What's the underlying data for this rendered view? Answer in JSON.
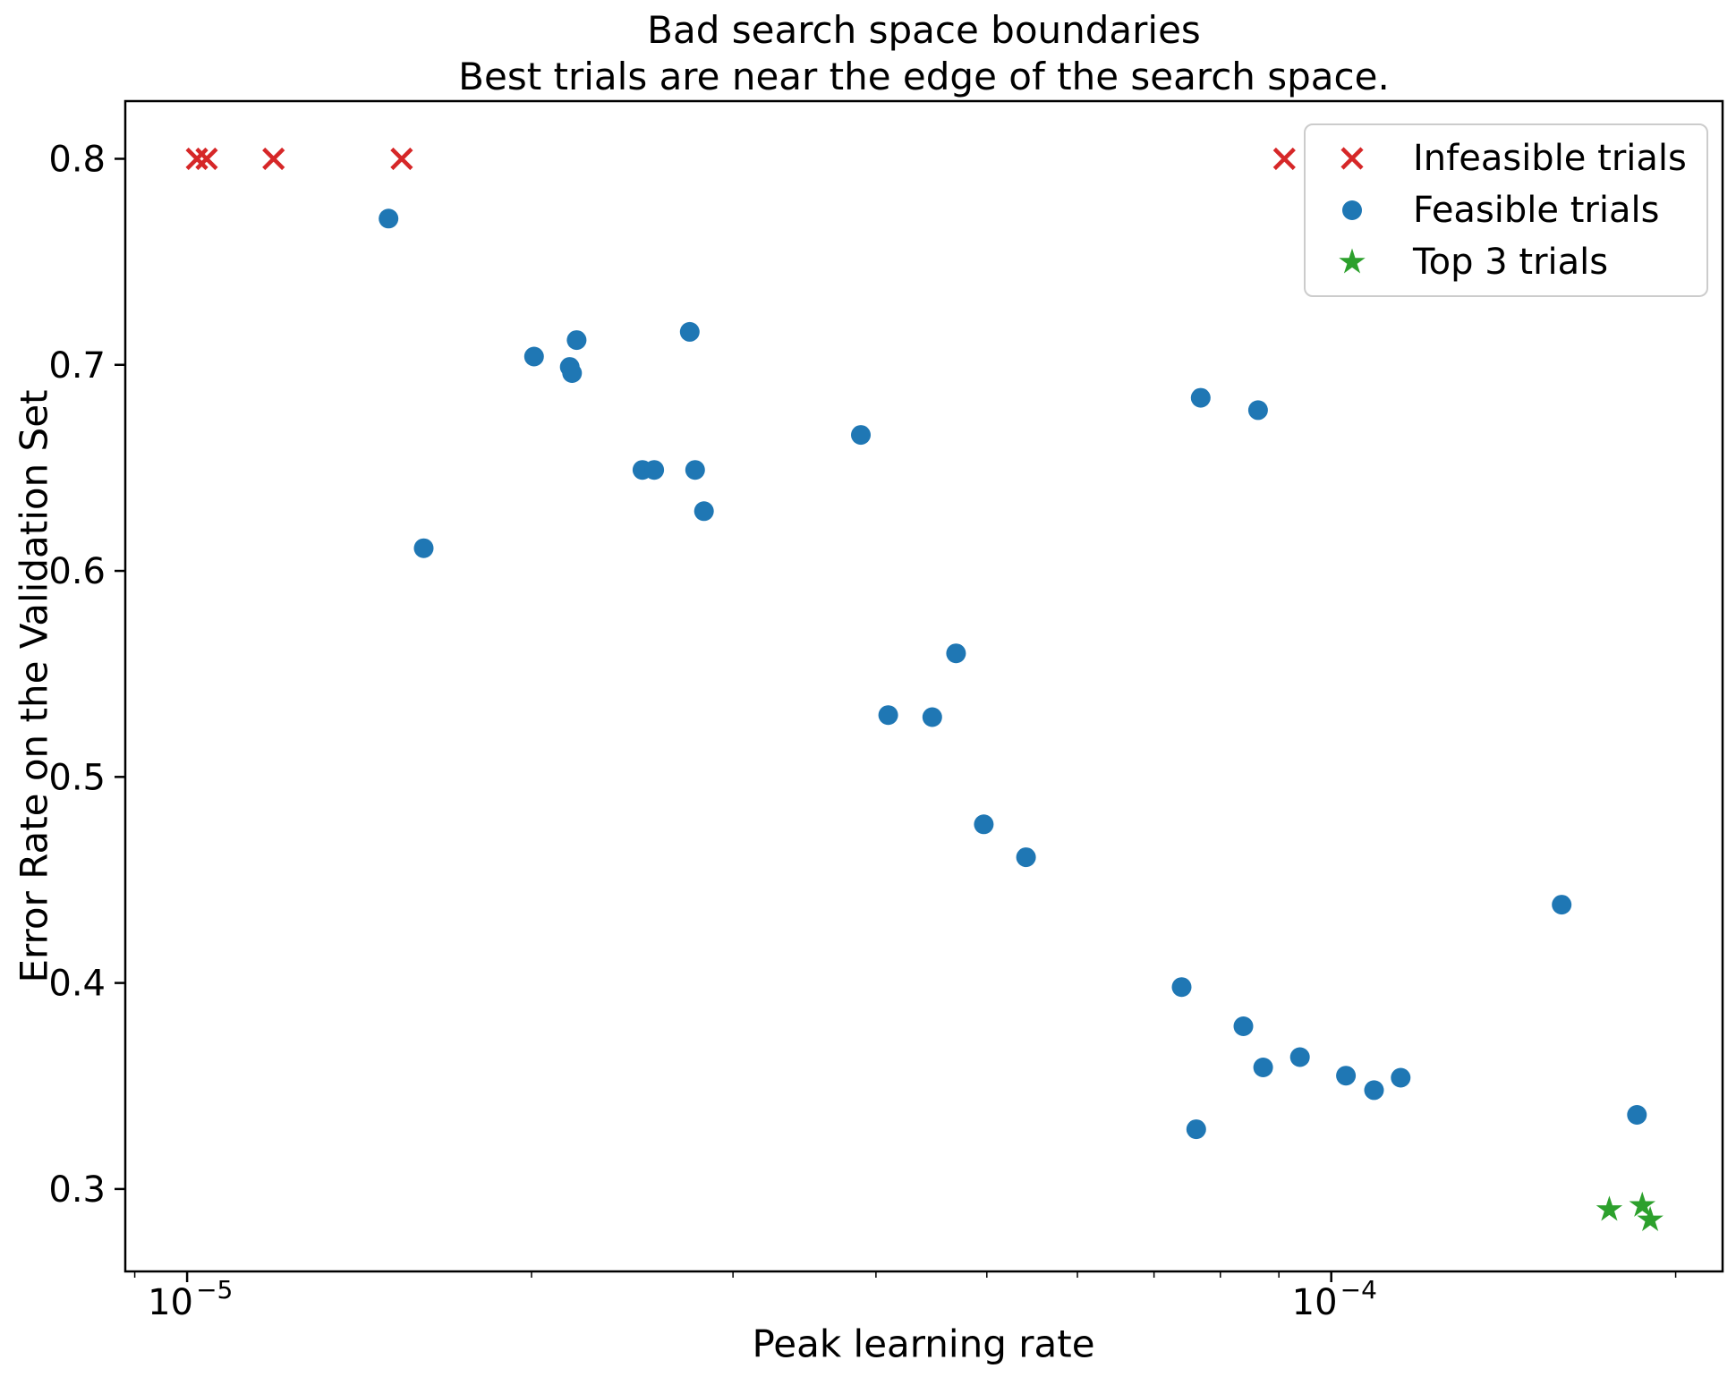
{
  "title": {
    "line1": "Bad search space boundaries",
    "line2": "Best trials are near the edge of the search space."
  },
  "chart_data": {
    "type": "scatter",
    "title": "Bad search space boundaries",
    "subtitle": "Best trials are near the edge of the search space.",
    "xlabel": "Peak learning rate",
    "ylabel": "Error Rate on the Validation Set",
    "x_scale": "log",
    "grid": false,
    "xlim": [
      8.83e-06,
      0.0002198
    ],
    "ylim": [
      0.26,
      0.828
    ],
    "x_major_ticks": [
      {
        "value": 1e-05,
        "base": "10",
        "exponent": "−5"
      },
      {
        "value": 0.0001,
        "base": "10",
        "exponent": "−4"
      }
    ],
    "x_minor_ticks": [
      9e-06,
      2e-05,
      3e-05,
      4e-05,
      5e-05,
      6e-05,
      7e-05,
      8e-05,
      9e-05,
      0.0002
    ],
    "y_ticks": [
      {
        "value": 0.3,
        "label": "0.3"
      },
      {
        "value": 0.4,
        "label": "0.4"
      },
      {
        "value": 0.5,
        "label": "0.5"
      },
      {
        "value": 0.6,
        "label": "0.6"
      },
      {
        "value": 0.7,
        "label": "0.7"
      },
      {
        "value": 0.8,
        "label": "0.8"
      }
    ],
    "legend": {
      "position": "upper right",
      "items": [
        {
          "label": "Infeasible trials",
          "marker": "x",
          "color": "#d62728"
        },
        {
          "label": "Feasible trials",
          "marker": "circle",
          "color": "#1f77b4"
        },
        {
          "label": "Top 3 trials",
          "marker": "star",
          "color": "#2ca02c"
        }
      ]
    },
    "series": [
      {
        "name": "Infeasible trials",
        "marker": "x",
        "color": "#d62728",
        "points": [
          [
            1.02e-05,
            0.8
          ],
          [
            1.04e-05,
            0.8
          ],
          [
            1.19e-05,
            0.8
          ],
          [
            1.54e-05,
            0.8
          ],
          [
            9.1e-05,
            0.8
          ]
        ]
      },
      {
        "name": "Feasible trials",
        "marker": "circle",
        "color": "#1f77b4",
        "points": [
          [
            1.5e-05,
            0.771
          ],
          [
            1.61e-05,
            0.611
          ],
          [
            2.01e-05,
            0.704
          ],
          [
            2.16e-05,
            0.699
          ],
          [
            2.17e-05,
            0.696
          ],
          [
            2.19e-05,
            0.712
          ],
          [
            2.5e-05,
            0.649
          ],
          [
            2.56e-05,
            0.649
          ],
          [
            2.75e-05,
            0.716
          ],
          [
            2.78e-05,
            0.649
          ],
          [
            2.83e-05,
            0.629
          ],
          [
            3.88e-05,
            0.666
          ],
          [
            4.1e-05,
            0.53
          ],
          [
            4.48e-05,
            0.529
          ],
          [
            4.7e-05,
            0.56
          ],
          [
            4.97e-05,
            0.477
          ],
          [
            5.41e-05,
            0.461
          ],
          [
            7.4e-05,
            0.398
          ],
          [
            7.62e-05,
            0.329
          ],
          [
            7.69e-05,
            0.684
          ],
          [
            8.38e-05,
            0.379
          ],
          [
            8.63e-05,
            0.678
          ],
          [
            8.72e-05,
            0.359
          ],
          [
            9.39e-05,
            0.364
          ],
          [
            0.000103,
            0.355
          ],
          [
            0.000109,
            0.348
          ],
          [
            0.000115,
            0.354
          ],
          [
            0.000159,
            0.438
          ],
          [
            0.000185,
            0.336
          ]
        ]
      },
      {
        "name": "Top 3 trials",
        "marker": "star",
        "color": "#2ca02c",
        "points": [
          [
            0.000175,
            0.29
          ],
          [
            0.000187,
            0.292
          ],
          [
            0.00019,
            0.285
          ]
        ]
      }
    ]
  }
}
